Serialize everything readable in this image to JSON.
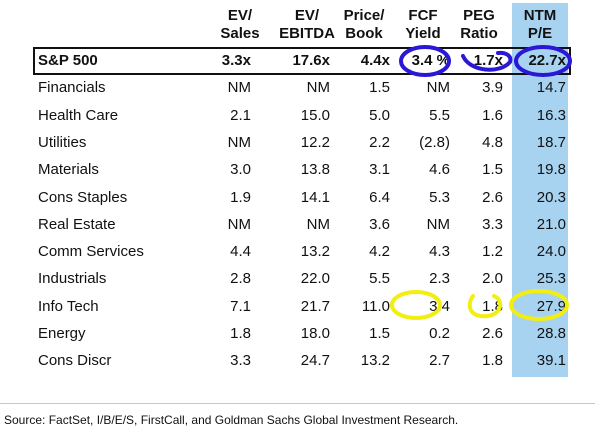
{
  "columns": [
    {
      "line1": "EV/",
      "line2": "Sales"
    },
    {
      "line1": "EV/",
      "line2": "EBITDA"
    },
    {
      "line1": "Price/",
      "line2": "Book"
    },
    {
      "line1": "FCF",
      "line2": "Yield"
    },
    {
      "line1": "PEG",
      "line2": "Ratio"
    },
    {
      "line1": "NTM",
      "line2": "P/E"
    }
  ],
  "rows": [
    {
      "name": "S&P 500",
      "values": [
        "3.3x",
        "17.6x",
        "4.4x",
        "3.4 %",
        "1.7x",
        "22.7x"
      ]
    },
    {
      "name": "Financials",
      "values": [
        "NM",
        "NM",
        "1.5",
        "NM",
        "3.9",
        "14.7"
      ]
    },
    {
      "name": "Health Care",
      "values": [
        "2.1",
        "15.0",
        "5.0",
        "5.5",
        "1.6",
        "16.3"
      ]
    },
    {
      "name": "Utilities",
      "values": [
        "NM",
        "12.2",
        "2.2",
        "(2.8)",
        "4.8",
        "18.7"
      ]
    },
    {
      "name": "Materials",
      "values": [
        "3.0",
        "13.8",
        "3.1",
        "4.6",
        "1.5",
        "19.8"
      ]
    },
    {
      "name": "Cons Staples",
      "values": [
        "1.9",
        "14.1",
        "6.4",
        "5.3",
        "2.6",
        "20.3"
      ]
    },
    {
      "name": "Real Estate",
      "values": [
        "NM",
        "NM",
        "3.6",
        "NM",
        "3.3",
        "21.0"
      ]
    },
    {
      "name": "Comm Services",
      "values": [
        "4.4",
        "13.2",
        "4.2",
        "4.3",
        "1.2",
        "24.0"
      ]
    },
    {
      "name": "Industrials",
      "values": [
        "2.8",
        "22.0",
        "5.5",
        "2.3",
        "2.0",
        "25.3"
      ]
    },
    {
      "name": "Info Tech",
      "values": [
        "7.1",
        "21.7",
        "11.0",
        "3.4",
        "1.8",
        "27.9"
      ]
    },
    {
      "name": "Energy",
      "values": [
        "1.8",
        "18.0",
        "1.5",
        "0.2",
        "2.6",
        "28.8"
      ]
    },
    {
      "name": "Cons Discr",
      "values": [
        "3.3",
        "24.7",
        "13.2",
        "2.7",
        "1.8",
        "39.1"
      ]
    }
  ],
  "source": "Source: FactSet, I/B/E/S, FirstCall, and Goldman Sachs Global Investment Research.",
  "colors": {
    "ntm_band": "#a8d3f0",
    "circle_blue": "#2a18d6",
    "circle_yellow": "#f2ee12"
  }
}
